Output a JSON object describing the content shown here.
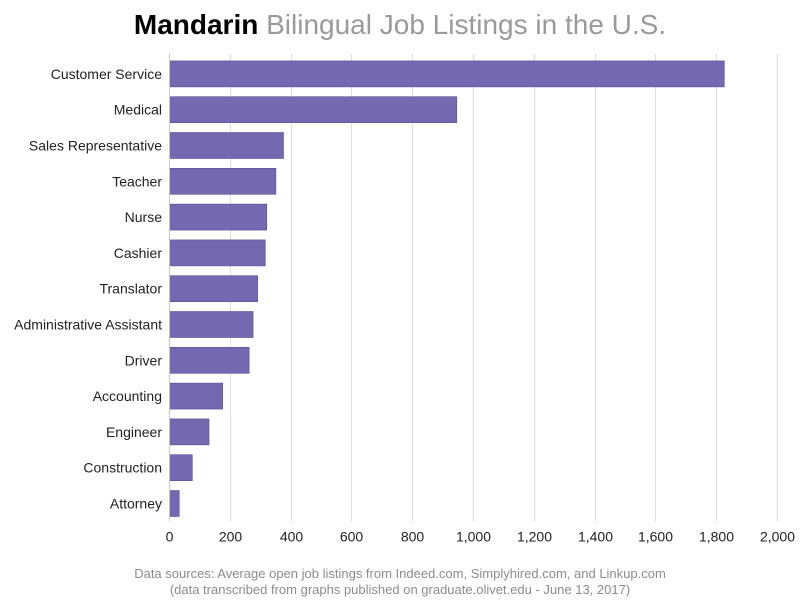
{
  "chart_data": {
    "type": "bar",
    "orientation": "horizontal",
    "title": {
      "lead": "Mandarin",
      "rest": "Bilingual Job Listings in the U.S."
    },
    "categories": [
      "Customer Service",
      "Medical",
      "Sales Representative",
      "Teacher",
      "Nurse",
      "Cashier",
      "Translator",
      "Administrative Assistant",
      "Driver",
      "Accounting",
      "Engineer",
      "Construction",
      "Attorney"
    ],
    "values": [
      1825,
      945,
      375,
      350,
      320,
      315,
      290,
      275,
      262,
      175,
      130,
      75,
      32
    ],
    "xlim": [
      0,
      2000
    ],
    "xticks": [
      "0",
      "200",
      "400",
      "600",
      "800",
      "1,000",
      "1,200",
      "1,400",
      "1,600",
      "1,800",
      "2,000"
    ],
    "grid": "vertical",
    "bar_color": "#7468b0",
    "xlabel": "",
    "ylabel": ""
  },
  "footer": {
    "line1": "Data sources: Average open job listings from Indeed.com, Simplyhired.com, and Linkup.com",
    "line2": "(data transcribed from graphs published on graduate.olivet.edu - June 13, 2017)"
  }
}
